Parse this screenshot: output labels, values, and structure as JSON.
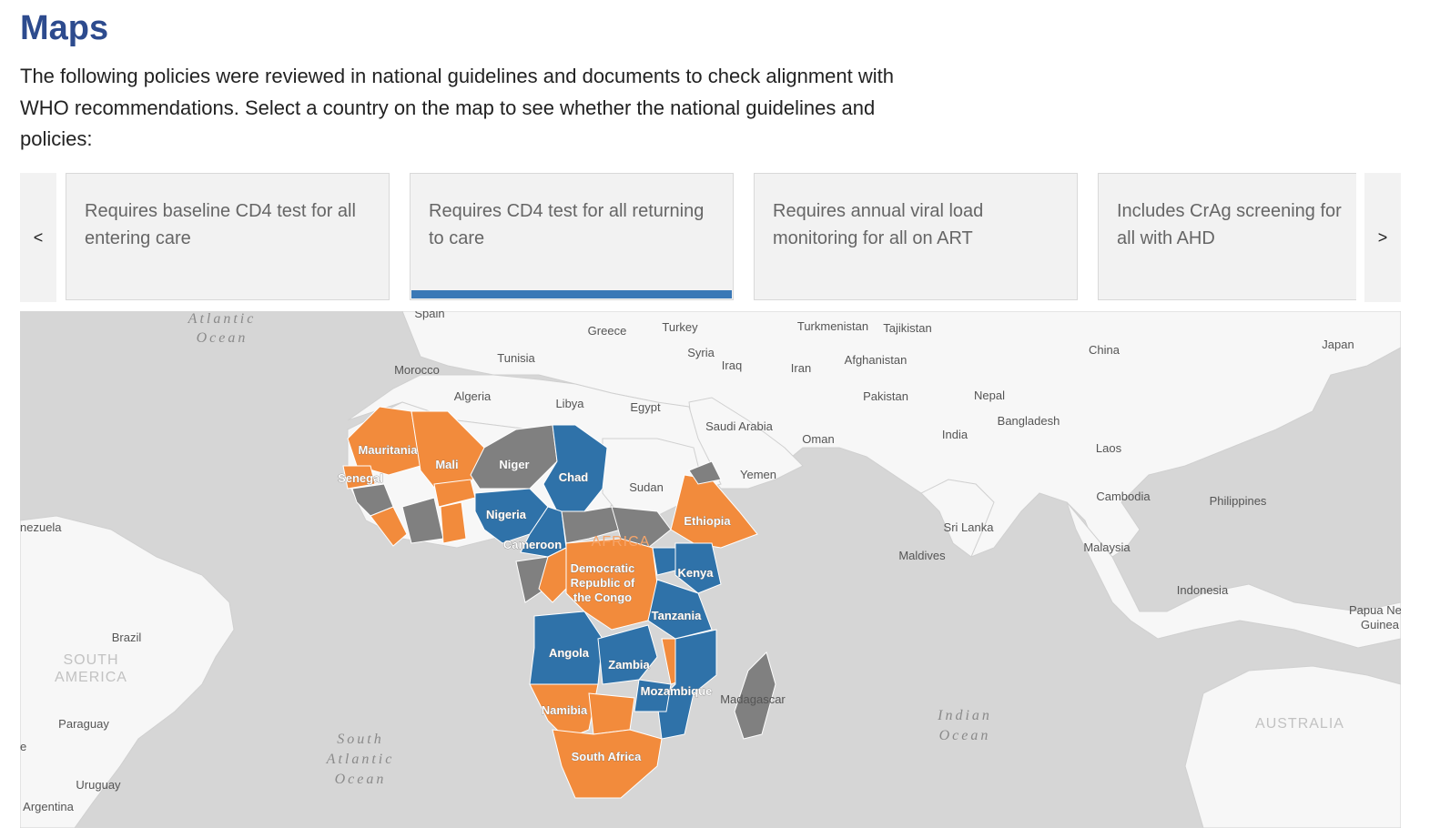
{
  "page": {
    "title": "Maps",
    "intro": "The following policies were reviewed in national guidelines and documents to check alignment with WHO recommendations. Select a country on the map to see whether the national guidelines and policies:"
  },
  "carousel": {
    "prev_label": "<",
    "next_label": ">",
    "active_index": 1,
    "tabs": [
      {
        "label": "Requires baseline CD4 test for all entering care"
      },
      {
        "label": "Requires CD4 test for all returning to care"
      },
      {
        "label": "Requires annual viral load monitoring for all on ART"
      },
      {
        "label": "Includes CrAg screening for all with AHD"
      }
    ]
  },
  "map": {
    "colors": {
      "orange": "#f28b3c",
      "blue": "#2f72a9",
      "grey": "#808080",
      "land": "#f7f7f7",
      "water": "#d6d6d6"
    },
    "oceans": {
      "atlantic": [
        "Atlantic",
        "Ocean"
      ],
      "south_atlantic": [
        "South",
        "Atlantic",
        "Ocean"
      ],
      "indian": [
        "Indian",
        "Ocean"
      ]
    },
    "continents": {
      "africa": "AFRICA",
      "south_america": [
        "SOUTH",
        "AMERICA"
      ],
      "australia": "AUSTRALIA"
    },
    "country_labels": {
      "spain": "Spain",
      "greece": "Greece",
      "turkey": "Turkey",
      "turkmenistan": "Turkmenistan",
      "tajikistan": "Tajikistan",
      "china": "China",
      "japan": "Japan",
      "syria": "Syria",
      "tunisia": "Tunisia",
      "morocco": "Morocco",
      "iraq": "Iraq",
      "iran": "Iran",
      "afghanistan": "Afghanistan",
      "algeria": "Algeria",
      "libya": "Libya",
      "egypt": "Egypt",
      "pakistan": "Pakistan",
      "nepal": "Nepal",
      "bangladesh": "Bangladesh",
      "saudi_arabia": "Saudi Arabia",
      "india": "India",
      "oman": "Oman",
      "laos": "Laos",
      "yemen": "Yemen",
      "cambodia": "Cambodia",
      "philippines": "Philippines",
      "sudan": "Sudan",
      "sri_lanka": "Sri Lanka",
      "maldives": "Maldives",
      "malaysia": "Malaysia",
      "indonesia": "Indonesia",
      "papua": [
        "Papua Ne",
        "Guinea"
      ],
      "venezuela": "nezuela",
      "brazil": "Brazil",
      "paraguay": "Paraguay",
      "uruguay": "Uruguay",
      "argentina": "Argentina",
      "chile_fragment": "e",
      "mauritania": "Mauritania",
      "mali": "Mali",
      "senegal": "Senegal",
      "niger": "Niger",
      "chad": "Chad",
      "nigeria": "Nigeria",
      "cameroon": "Cameroon",
      "ethiopia": "Ethiopia",
      "drc": [
        "Democratic",
        "Republic of",
        "the Congo"
      ],
      "kenya": "Kenya",
      "tanzania": "Tanzania",
      "angola": "Angola",
      "zambia": "Zambia",
      "mozambique": "Mozambique",
      "madagascar": "Madagascar",
      "namibia": "Namibia",
      "south_africa": "South Africa"
    }
  }
}
